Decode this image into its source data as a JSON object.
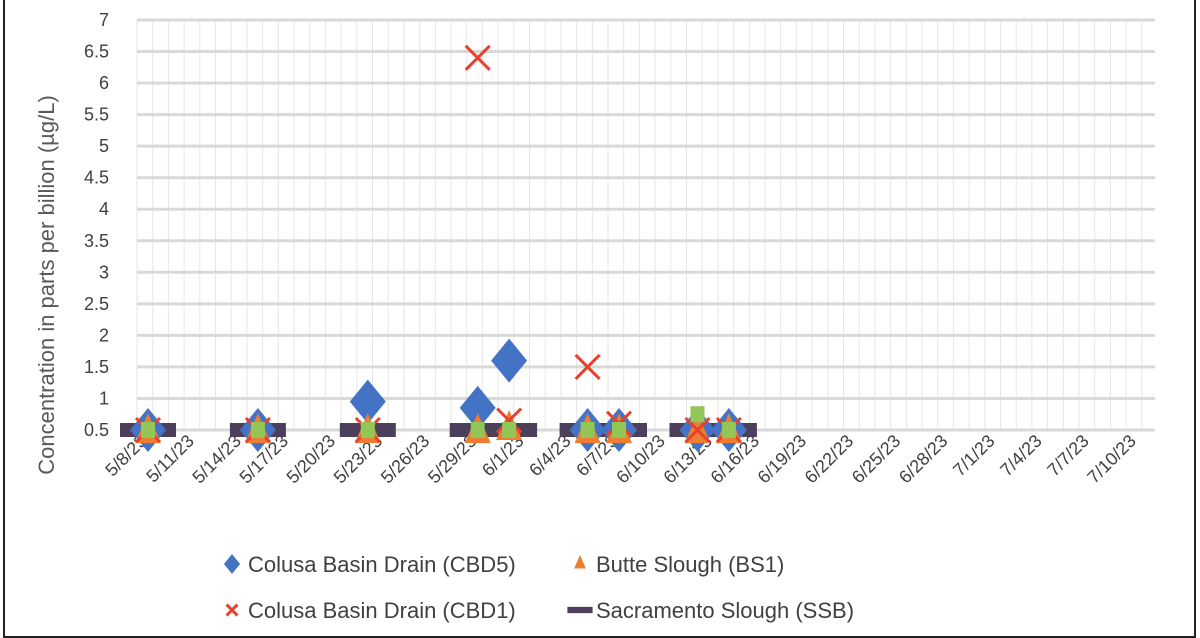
{
  "chart_data": {
    "type": "scatter",
    "title": "",
    "xlabel": "",
    "ylabel": "Concentration in parts per billion (µg/L)",
    "ylim": [
      0.5,
      7
    ],
    "yticks": [
      "0.5",
      "1",
      "1.5",
      "2",
      "2.5",
      "3",
      "3.5",
      "4",
      "4.5",
      "5",
      "5.5",
      "6",
      "6.5",
      "7"
    ],
    "xticks": [
      "5/8/23",
      "5/11/23",
      "5/14/23",
      "5/17/23",
      "5/20/23",
      "5/23/23",
      "5/26/23",
      "5/29/23",
      "6/1/23",
      "6/4/23",
      "6/7/23",
      "6/10/23",
      "6/13/23",
      "6/16/23",
      "6/19/23",
      "6/22/23",
      "6/25/23",
      "6/28/23",
      "7/1/23",
      "7/4/23",
      "7/7/23",
      "7/10/23"
    ],
    "x_dates": [
      "5/8/23",
      "5/15/23",
      "5/22/23",
      "5/29/23",
      "5/31/23",
      "6/5/23",
      "6/7/23",
      "6/12/23",
      "6/14/23"
    ],
    "grid": true,
    "legend_position": "bottom",
    "series": [
      {
        "name": "Colusa Basin Drain (CBD5)",
        "marker": "diamond",
        "color": "#4472C4",
        "values": [
          0.5,
          0.5,
          0.95,
          0.85,
          1.6,
          0.5,
          0.5,
          0.5,
          0.5
        ]
      },
      {
        "name": "Butte Slough (BS1)",
        "marker": "triangle",
        "color": "#ED7D31",
        "values": [
          0.45,
          0.45,
          0.45,
          0.45,
          0.5,
          0.45,
          0.45,
          0.45,
          0.45
        ]
      },
      {
        "name": "Colusa Basin Drain (CBD1)",
        "marker": "x",
        "color": "#E8412C",
        "values": [
          0.5,
          0.5,
          0.5,
          6.4,
          0.65,
          1.5,
          0.6,
          0.5,
          0.5
        ]
      },
      {
        "name": "Sacramento Slough (SSB)",
        "marker": "dash",
        "color": "#4B3F5C",
        "values": [
          0.5,
          0.5,
          0.5,
          0.5,
          0.5,
          0.5,
          0.5,
          0.5,
          0.5
        ]
      },
      {
        "name": "",
        "marker": "square",
        "color": "#92C656",
        "values": [
          0.5,
          0.5,
          0.5,
          0.5,
          0.5,
          0.5,
          0.5,
          0.75,
          0.5
        ]
      }
    ]
  }
}
